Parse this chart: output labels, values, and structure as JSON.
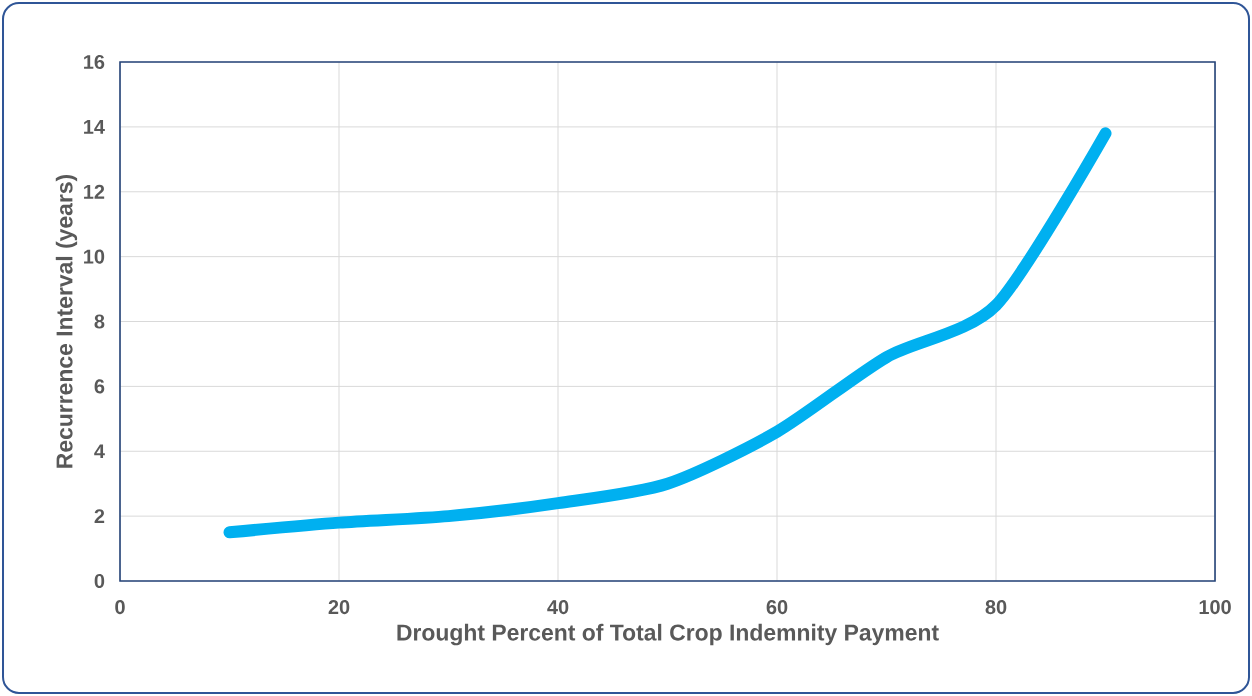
{
  "chart_data": {
    "type": "line",
    "xlabel": "Drought Percent of Total Crop Indemnity Payment",
    "ylabel": "Recurrence Interval (years)",
    "x": [
      10,
      20,
      30,
      40,
      50,
      60,
      70,
      80,
      90
    ],
    "series": [
      {
        "color": "#00b0f0",
        "values": [
          1.5,
          1.8,
          2.0,
          2.4,
          3.0,
          4.6,
          6.9,
          8.5,
          13.8
        ]
      }
    ],
    "xlim": [
      0,
      100
    ],
    "ylim": [
      0,
      16
    ],
    "xticks": [
      0,
      20,
      40,
      60,
      80,
      100
    ],
    "yticks": [
      0,
      2,
      4,
      6,
      8,
      10,
      12,
      14,
      16
    ],
    "grid": true,
    "line_style": "solid"
  }
}
